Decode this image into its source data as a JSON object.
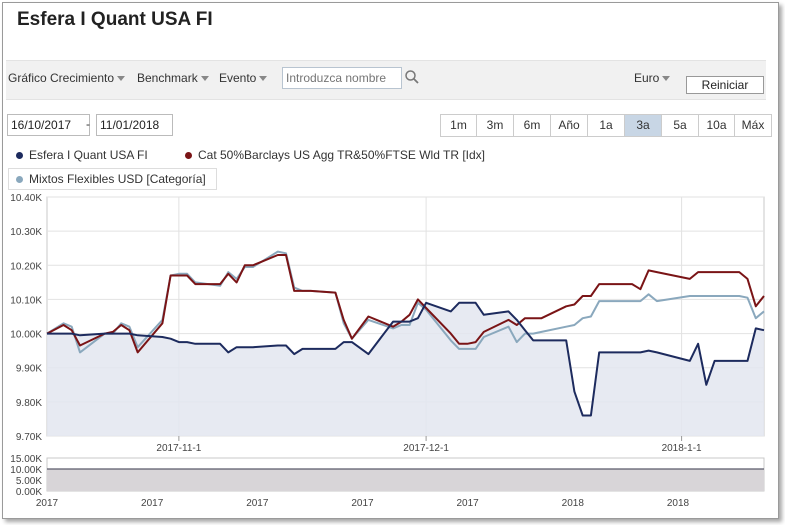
{
  "title": "Esfera I Quant USA FI",
  "toolbar": {
    "growth_label": "Gráfico Crecimiento",
    "benchmark_label": "Benchmark",
    "event_label": "Evento",
    "search_placeholder": "Introduzca nombre",
    "currency_label": "Euro",
    "reset_label": "Reiniciar"
  },
  "date_range": {
    "from": "16/10/2017",
    "separator": "-",
    "to": "11/01/2018"
  },
  "periods": [
    "1m",
    "3m",
    "6m",
    "Año",
    "1a",
    "3a",
    "5a",
    "10a",
    "Máx"
  ],
  "active_period": "3a",
  "colors": {
    "fund": "#1d2b5e",
    "benchmark": "#7a1416",
    "category": "#8aa8bd",
    "area_fill": "#e3e6f0",
    "nav_fill": "#d8d5d8"
  },
  "chart_data": {
    "type": "line",
    "title": "",
    "xlabel": "",
    "ylabel": "",
    "ylim": [
      9700,
      10400
    ],
    "yticks": [
      9700,
      9800,
      9900,
      10000,
      10100,
      10200,
      10300,
      10400
    ],
    "ytick_labels": [
      "9.70K",
      "9.80K",
      "9.90K",
      "10.00K",
      "10.10K",
      "10.20K",
      "10.30K",
      "10.40K"
    ],
    "xticks": [
      {
        "x": "2017-11-01",
        "label": "2017-11-1"
      },
      {
        "x": "2017-12-01",
        "label": "2017-12-1"
      },
      {
        "x": "2018-01-01",
        "label": "2018-1-1"
      }
    ],
    "series": [
      {
        "name": "Esfera I Quant USA FI",
        "color": "#1d2b5e",
        "points": [
          [
            "2017-10-16",
            10000
          ],
          [
            "2017-10-18",
            10000
          ],
          [
            "2017-10-19",
            10000
          ],
          [
            "2017-10-20",
            9995
          ],
          [
            "2017-10-23",
            10000
          ],
          [
            "2017-10-24",
            10000
          ],
          [
            "2017-10-25",
            10000
          ],
          [
            "2017-10-26",
            10000
          ],
          [
            "2017-10-27",
            9995
          ],
          [
            "2017-10-30",
            9990
          ],
          [
            "2017-10-31",
            9985
          ],
          [
            "2017-11-01",
            9975
          ],
          [
            "2017-11-02",
            9975
          ],
          [
            "2017-11-03",
            9970
          ],
          [
            "2017-11-06",
            9970
          ],
          [
            "2017-11-07",
            9945
          ],
          [
            "2017-11-08",
            9960
          ],
          [
            "2017-11-09",
            9960
          ],
          [
            "2017-11-10",
            9960
          ],
          [
            "2017-11-13",
            9965
          ],
          [
            "2017-11-14",
            9965
          ],
          [
            "2017-11-15",
            9940
          ],
          [
            "2017-11-16",
            9955
          ],
          [
            "2017-11-17",
            9955
          ],
          [
            "2017-11-20",
            9955
          ],
          [
            "2017-11-21",
            9975
          ],
          [
            "2017-11-22",
            9975
          ],
          [
            "2017-11-24",
            9940
          ],
          [
            "2017-11-27",
            10035
          ],
          [
            "2017-11-28",
            10035
          ],
          [
            "2017-11-29",
            10035
          ],
          [
            "2017-11-30",
            10045
          ],
          [
            "2017-12-01",
            10090
          ],
          [
            "2017-12-04",
            10065
          ],
          [
            "2017-12-05",
            10090
          ],
          [
            "2017-12-06",
            10090
          ],
          [
            "2017-12-07",
            10090
          ],
          [
            "2017-12-08",
            10055
          ],
          [
            "2017-12-11",
            10065
          ],
          [
            "2017-12-12",
            10040
          ],
          [
            "2017-12-13",
            10010
          ],
          [
            "2017-12-14",
            9980
          ],
          [
            "2017-12-15",
            9980
          ],
          [
            "2017-12-18",
            9980
          ],
          [
            "2017-12-19",
            9830
          ],
          [
            "2017-12-20",
            9760
          ],
          [
            "2017-12-21",
            9760
          ],
          [
            "2017-12-22",
            9945
          ],
          [
            "2017-12-26",
            9945
          ],
          [
            "2017-12-27",
            9945
          ],
          [
            "2017-12-28",
            9950
          ],
          [
            "2017-12-29",
            9945
          ],
          [
            "2018-01-02",
            9920
          ],
          [
            "2018-01-03",
            9970
          ],
          [
            "2018-01-04",
            9850
          ],
          [
            "2018-01-05",
            9920
          ],
          [
            "2018-01-08",
            9920
          ],
          [
            "2018-01-09",
            9920
          ],
          [
            "2018-01-10",
            10015
          ],
          [
            "2018-01-11",
            10010
          ]
        ]
      },
      {
        "name": "Cat 50%Barclays US Agg TR&50%FTSE Wld TR [Idx]",
        "color": "#7a1416",
        "points": [
          [
            "2017-10-16",
            10000
          ],
          [
            "2017-10-18",
            10025
          ],
          [
            "2017-10-19",
            10010
          ],
          [
            "2017-10-20",
            9965
          ],
          [
            "2017-10-23",
            10000
          ],
          [
            "2017-10-24",
            10005
          ],
          [
            "2017-10-25",
            10025
          ],
          [
            "2017-10-26",
            10010
          ],
          [
            "2017-10-27",
            9945
          ],
          [
            "2017-10-30",
            10030
          ],
          [
            "2017-10-31",
            10170
          ],
          [
            "2017-11-01",
            10170
          ],
          [
            "2017-11-02",
            10170
          ],
          [
            "2017-11-03",
            10145
          ],
          [
            "2017-11-06",
            10145
          ],
          [
            "2017-11-07",
            10175
          ],
          [
            "2017-11-08",
            10150
          ],
          [
            "2017-11-09",
            10200
          ],
          [
            "2017-11-10",
            10200
          ],
          [
            "2017-11-13",
            10230
          ],
          [
            "2017-11-14",
            10230
          ],
          [
            "2017-11-15",
            10125
          ],
          [
            "2017-11-16",
            10125
          ],
          [
            "2017-11-17",
            10125
          ],
          [
            "2017-11-20",
            10120
          ],
          [
            "2017-11-21",
            10040
          ],
          [
            "2017-11-22",
            9985
          ],
          [
            "2017-11-24",
            10050
          ],
          [
            "2017-11-27",
            10020
          ],
          [
            "2017-11-28",
            10035
          ],
          [
            "2017-11-29",
            10055
          ],
          [
            "2017-11-30",
            10100
          ],
          [
            "2017-12-01",
            10075
          ],
          [
            "2017-12-04",
            10000
          ],
          [
            "2017-12-05",
            9970
          ],
          [
            "2017-12-06",
            9970
          ],
          [
            "2017-12-07",
            9975
          ],
          [
            "2017-12-08",
            10005
          ],
          [
            "2017-12-11",
            10040
          ],
          [
            "2017-12-12",
            10025
          ],
          [
            "2017-12-13",
            10045
          ],
          [
            "2017-12-14",
            10045
          ],
          [
            "2017-12-15",
            10045
          ],
          [
            "2017-12-18",
            10080
          ],
          [
            "2017-12-19",
            10085
          ],
          [
            "2017-12-20",
            10110
          ],
          [
            "2017-12-21",
            10110
          ],
          [
            "2017-12-22",
            10145
          ],
          [
            "2017-12-26",
            10145
          ],
          [
            "2017-12-27",
            10130
          ],
          [
            "2017-12-28",
            10185
          ],
          [
            "2017-12-29",
            10180
          ],
          [
            "2018-01-02",
            10160
          ],
          [
            "2018-01-03",
            10180
          ],
          [
            "2018-01-04",
            10180
          ],
          [
            "2018-01-05",
            10180
          ],
          [
            "2018-01-08",
            10180
          ],
          [
            "2018-01-09",
            10160
          ],
          [
            "2018-01-10",
            10080
          ],
          [
            "2018-01-11",
            10110
          ]
        ]
      },
      {
        "name": "Mixtos Flexibles USD [Categoría]",
        "color": "#8aa8bd",
        "points": [
          [
            "2017-10-16",
            10000
          ],
          [
            "2017-10-18",
            10030
          ],
          [
            "2017-10-19",
            10020
          ],
          [
            "2017-10-20",
            9945
          ],
          [
            "2017-10-23",
            10000
          ],
          [
            "2017-10-24",
            10000
          ],
          [
            "2017-10-25",
            10030
          ],
          [
            "2017-10-26",
            10020
          ],
          [
            "2017-10-27",
            9960
          ],
          [
            "2017-10-30",
            10040
          ],
          [
            "2017-10-31",
            10170
          ],
          [
            "2017-11-01",
            10175
          ],
          [
            "2017-11-02",
            10175
          ],
          [
            "2017-11-03",
            10150
          ],
          [
            "2017-11-06",
            10140
          ],
          [
            "2017-11-07",
            10180
          ],
          [
            "2017-11-08",
            10160
          ],
          [
            "2017-11-09",
            10195
          ],
          [
            "2017-11-10",
            10195
          ],
          [
            "2017-11-13",
            10240
          ],
          [
            "2017-11-14",
            10235
          ],
          [
            "2017-11-15",
            10135
          ],
          [
            "2017-11-16",
            10125
          ],
          [
            "2017-11-17",
            10125
          ],
          [
            "2017-11-20",
            10120
          ],
          [
            "2017-11-21",
            10030
          ],
          [
            "2017-11-22",
            9985
          ],
          [
            "2017-11-24",
            10040
          ],
          [
            "2017-11-27",
            10015
          ],
          [
            "2017-11-28",
            10025
          ],
          [
            "2017-11-29",
            10025
          ],
          [
            "2017-11-30",
            10090
          ],
          [
            "2017-12-01",
            10070
          ],
          [
            "2017-12-04",
            9980
          ],
          [
            "2017-12-05",
            9955
          ],
          [
            "2017-12-06",
            9955
          ],
          [
            "2017-12-07",
            9955
          ],
          [
            "2017-12-08",
            9990
          ],
          [
            "2017-12-11",
            10020
          ],
          [
            "2017-12-12",
            9975
          ],
          [
            "2017-12-13",
            10000
          ],
          [
            "2017-12-14",
            10000
          ],
          [
            "2017-12-15",
            10005
          ],
          [
            "2017-12-18",
            10020
          ],
          [
            "2017-12-19",
            10025
          ],
          [
            "2017-12-20",
            10045
          ],
          [
            "2017-12-21",
            10050
          ],
          [
            "2017-12-22",
            10095
          ],
          [
            "2017-12-26",
            10095
          ],
          [
            "2017-12-27",
            10095
          ],
          [
            "2017-12-28",
            10115
          ],
          [
            "2017-12-29",
            10095
          ],
          [
            "2018-01-02",
            10110
          ],
          [
            "2018-01-03",
            10110
          ],
          [
            "2018-01-04",
            10110
          ],
          [
            "2018-01-05",
            10110
          ],
          [
            "2018-01-08",
            10110
          ],
          [
            "2018-01-09",
            10105
          ],
          [
            "2018-01-10",
            10045
          ],
          [
            "2018-01-11",
            10065
          ]
        ]
      }
    ],
    "navigator": {
      "yticks": [
        0,
        5000,
        10000,
        15000
      ],
      "ytick_labels": [
        "0.00K",
        "5.00K",
        "10.00K",
        "15.00K"
      ],
      "xtick_labels": [
        "2017",
        "2017",
        "2017",
        "2017",
        "2017",
        "2018",
        "2018"
      ]
    }
  }
}
